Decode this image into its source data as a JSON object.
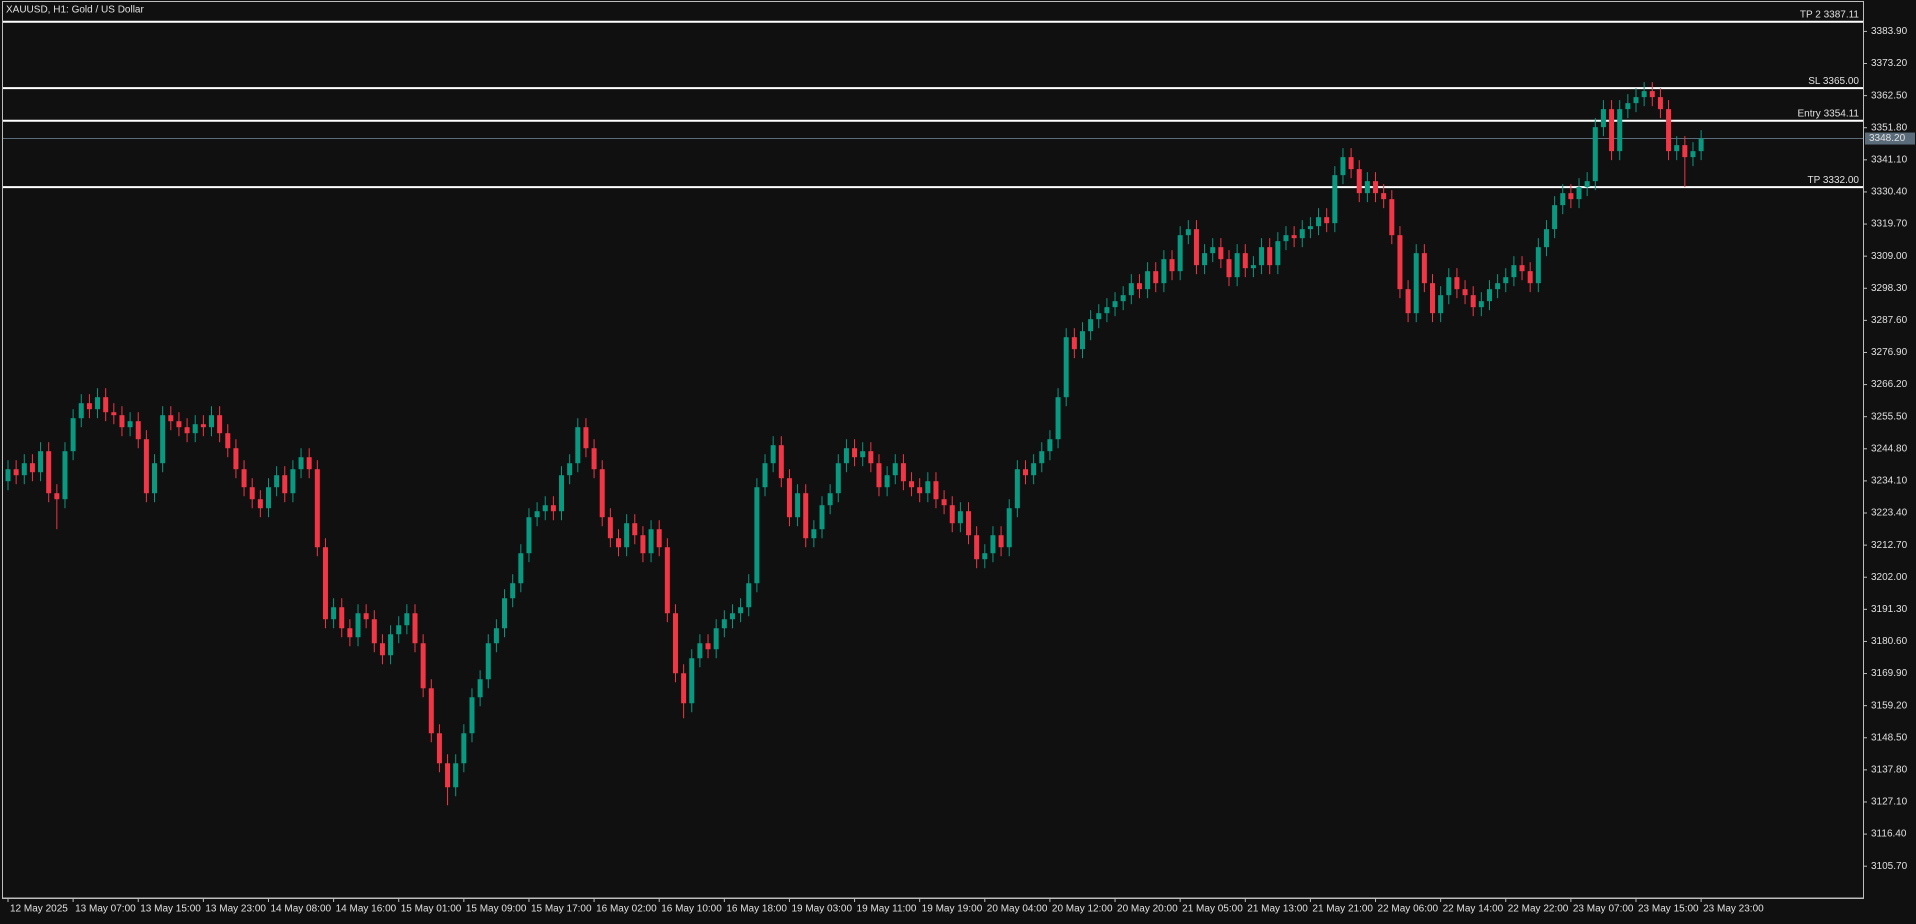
{
  "chart_data": {
    "type": "candlestick",
    "title": "XAUUSD, H1:  Gold / US Dollar",
    "up_color": "#089981",
    "down_color": "#f23645",
    "categories": [
      "12 May 2025",
      null,
      null,
      null,
      null,
      null,
      null,
      null,
      "13 May 07:00",
      null,
      null,
      null,
      null,
      null,
      null,
      null,
      "13 May 15:00",
      null,
      null,
      null,
      null,
      null,
      null,
      null,
      "13 May 23:00",
      null,
      null,
      null,
      null,
      null,
      null,
      null,
      "14 May 08:00",
      null,
      null,
      null,
      null,
      null,
      null,
      null,
      "14 May 16:00",
      null,
      null,
      null,
      null,
      null,
      null,
      null,
      "15 May 01:00",
      null,
      null,
      null,
      null,
      null,
      null,
      null,
      "15 May 09:00",
      null,
      null,
      null,
      null,
      null,
      null,
      null,
      "15 May 17:00",
      null,
      null,
      null,
      null,
      null,
      null,
      null,
      "16 May 02:00",
      null,
      null,
      null,
      null,
      null,
      null,
      null,
      "16 May 10:00",
      null,
      null,
      null,
      null,
      null,
      null,
      null,
      "16 May 18:00",
      null,
      null,
      null,
      null,
      null,
      null,
      null,
      "19 May 03:00",
      null,
      null,
      null,
      null,
      null,
      null,
      null,
      "19 May 11:00",
      null,
      null,
      null,
      null,
      null,
      null,
      null,
      "19 May 19:00",
      null,
      null,
      null,
      null,
      null,
      null,
      null,
      "20 May 04:00",
      null,
      null,
      null,
      null,
      null,
      null,
      null,
      "20 May 12:00",
      null,
      null,
      null,
      null,
      null,
      null,
      null,
      "20 May 20:00",
      null,
      null,
      null,
      null,
      null,
      null,
      null,
      "21 May 05:00",
      null,
      null,
      null,
      null,
      null,
      null,
      null,
      "21 May 13:00",
      null,
      null,
      null,
      null,
      null,
      null,
      null,
      "21 May 21:00",
      null,
      null,
      null,
      null,
      null,
      null,
      null,
      "22 May 06:00",
      null,
      null,
      null,
      null,
      null,
      null,
      null,
      "22 May 14:00",
      null,
      null,
      null,
      null,
      null,
      null,
      null,
      "22 May 22:00",
      null,
      null,
      null,
      null,
      null,
      null,
      null,
      "23 May 07:00",
      null,
      null,
      null,
      null,
      null,
      null,
      null,
      "23 May 15:00",
      null,
      null,
      null,
      null,
      null,
      null,
      null,
      "23 May 23:00"
    ],
    "open": [
      3234,
      3238,
      3236,
      3240,
      3237,
      3244,
      3230,
      3228,
      3244,
      3255,
      3260,
      3258,
      3262,
      3257,
      3256,
      3252,
      3254,
      3248,
      3230,
      3240,
      3256,
      3254,
      3252,
      3250,
      3253,
      3252,
      3256,
      3250,
      3245,
      3238,
      3232,
      3228,
      3225,
      3232,
      3236,
      3230,
      3238,
      3242,
      3238,
      3212,
      3188,
      3192,
      3185,
      3182,
      3190,
      3188,
      3180,
      3176,
      3183,
      3186,
      3190,
      3180,
      3165,
      3150,
      3140,
      3132,
      3140,
      3150,
      3162,
      3168,
      3180,
      3185,
      3195,
      3200,
      3210,
      3222,
      3224,
      3226,
      3224,
      3236,
      3240,
      3252,
      3245,
      3238,
      3222,
      3215,
      3212,
      3220,
      3216,
      3210,
      3218,
      3212,
      3190,
      3170,
      3160,
      3175,
      3180,
      3178,
      3185,
      3188,
      3190,
      3192,
      3200,
      3232,
      3240,
      3246,
      3235,
      3222,
      3230,
      3215,
      3218,
      3226,
      3230,
      3240,
      3245,
      3242,
      3244,
      3240,
      3232,
      3236,
      3240,
      3234,
      3232,
      3230,
      3234,
      3228,
      3226,
      3220,
      3224,
      3216,
      3208,
      3210,
      3216,
      3212,
      3225,
      3238,
      3236,
      3240,
      3244,
      3248,
      3262,
      3282,
      3278,
      3284,
      3288,
      3290,
      3292,
      3294,
      3296,
      3300,
      3298,
      3304,
      3300,
      3308,
      3304,
      3316,
      3318,
      3306,
      3310,
      3312,
      3308,
      3302,
      3310,
      3305,
      3306,
      3312,
      3306,
      3314,
      3316,
      3315,
      3318,
      3319,
      3322,
      3320,
      3336,
      3342,
      3338,
      3330,
      3334,
      3330,
      3328,
      3316,
      3298,
      3290,
      3310,
      3300,
      3290,
      3296,
      3302,
      3298,
      3296,
      3292,
      3294,
      3298,
      3300,
      3302,
      3306,
      3304,
      3300,
      3312,
      3318,
      3326,
      3330,
      3328,
      3332,
      3334,
      3352,
      3358,
      3344,
      3358,
      3360,
      3362,
      3364,
      3362,
      3358,
      3344,
      3346,
      3342,
      3344
    ],
    "high": [
      3241,
      3241,
      3243,
      3243,
      3247,
      3247,
      3233,
      3247,
      3258,
      3263,
      3263,
      3265,
      3265,
      3260,
      3259,
      3257,
      3257,
      3251,
      3243,
      3259,
      3259,
      3257,
      3255,
      3256,
      3256,
      3259,
      3259,
      3253,
      3248,
      3241,
      3235,
      3231,
      3235,
      3239,
      3239,
      3241,
      3245,
      3245,
      3241,
      3215,
      3195,
      3195,
      3188,
      3193,
      3193,
      3191,
      3183,
      3186,
      3189,
      3193,
      3193,
      3183,
      3168,
      3153,
      3143,
      3143,
      3153,
      3165,
      3171,
      3183,
      3188,
      3198,
      3203,
      3213,
      3225,
      3227,
      3229,
      3229,
      3239,
      3243,
      3255,
      3255,
      3248,
      3241,
      3225,
      3218,
      3223,
      3223,
      3219,
      3221,
      3221,
      3215,
      3193,
      3173,
      3178,
      3183,
      3183,
      3188,
      3191,
      3193,
      3195,
      3203,
      3235,
      3243,
      3249,
      3249,
      3238,
      3233,
      3233,
      3221,
      3229,
      3233,
      3243,
      3248,
      3248,
      3247,
      3247,
      3243,
      3239,
      3243,
      3243,
      3237,
      3235,
      3237,
      3237,
      3231,
      3229,
      3227,
      3227,
      3219,
      3213,
      3219,
      3219,
      3228,
      3241,
      3241,
      3243,
      3247,
      3251,
      3265,
      3285,
      3285,
      3287,
      3291,
      3293,
      3295,
      3297,
      3299,
      3303,
      3303,
      3307,
      3307,
      3311,
      3311,
      3319,
      3321,
      3321,
      3313,
      3315,
      3315,
      3311,
      3313,
      3313,
      3309,
      3315,
      3315,
      3317,
      3319,
      3319,
      3321,
      3322,
      3325,
      3325,
      3339,
      3345,
      3345,
      3341,
      3337,
      3337,
      3333,
      3331,
      3319,
      3301,
      3313,
      3313,
      3303,
      3299,
      3305,
      3305,
      3301,
      3299,
      3297,
      3301,
      3303,
      3305,
      3309,
      3309,
      3307,
      3315,
      3321,
      3329,
      3333,
      3333,
      3335,
      3337,
      3355,
      3361,
      3361,
      3361,
      3363,
      3365,
      3367,
      3367,
      3365,
      3361,
      3349,
      3349,
      3347,
      3351
    ],
    "low": [
      3231,
      3233,
      3233,
      3234,
      3234,
      3227,
      3218,
      3225,
      3241,
      3252,
      3255,
      3255,
      3254,
      3253,
      3249,
      3249,
      3245,
      3227,
      3227,
      3237,
      3251,
      3249,
      3247,
      3247,
      3249,
      3249,
      3247,
      3242,
      3235,
      3229,
      3225,
      3222,
      3222,
      3229,
      3227,
      3227,
      3235,
      3235,
      3209,
      3185,
      3185,
      3182,
      3179,
      3179,
      3185,
      3177,
      3173,
      3173,
      3180,
      3183,
      3177,
      3162,
      3147,
      3137,
      3126,
      3129,
      3137,
      3147,
      3159,
      3165,
      3177,
      3182,
      3192,
      3197,
      3207,
      3219,
      3221,
      3221,
      3221,
      3233,
      3237,
      3242,
      3235,
      3219,
      3212,
      3209,
      3209,
      3213,
      3207,
      3207,
      3209,
      3187,
      3167,
      3155,
      3157,
      3172,
      3175,
      3175,
      3182,
      3185,
      3187,
      3189,
      3197,
      3229,
      3237,
      3232,
      3219,
      3219,
      3212,
      3212,
      3215,
      3223,
      3227,
      3237,
      3239,
      3239,
      3237,
      3229,
      3229,
      3233,
      3231,
      3229,
      3227,
      3227,
      3225,
      3223,
      3217,
      3217,
      3213,
      3205,
      3205,
      3207,
      3209,
      3209,
      3222,
      3233,
      3233,
      3237,
      3241,
      3245,
      3259,
      3275,
      3275,
      3281,
      3285,
      3287,
      3289,
      3291,
      3293,
      3295,
      3295,
      3297,
      3297,
      3301,
      3301,
      3313,
      3303,
      3303,
      3307,
      3305,
      3299,
      3299,
      3302,
      3302,
      3303,
      3303,
      3303,
      3311,
      3312,
      3312,
      3315,
      3316,
      3317,
      3317,
      3333,
      3335,
      3327,
      3327,
      3327,
      3325,
      3313,
      3295,
      3287,
      3287,
      3297,
      3287,
      3287,
      3293,
      3295,
      3293,
      3289,
      3289,
      3291,
      3295,
      3297,
      3299,
      3301,
      3297,
      3297,
      3309,
      3315,
      3323,
      3325,
      3325,
      3329,
      3331,
      3349,
      3341,
      3341,
      3355,
      3357,
      3359,
      3359,
      3355,
      3341,
      3341,
      3332,
      3339,
      3341
    ],
    "close": [
      3238,
      3236,
      3240,
      3237,
      3244,
      3230,
      3228,
      3244,
      3255,
      3260,
      3258,
      3262,
      3257,
      3256,
      3252,
      3254,
      3248,
      3230,
      3240,
      3256,
      3254,
      3252,
      3250,
      3253,
      3252,
      3256,
      3250,
      3245,
      3238,
      3232,
      3228,
      3225,
      3232,
      3236,
      3230,
      3238,
      3242,
      3238,
      3212,
      3188,
      3192,
      3185,
      3182,
      3190,
      3188,
      3180,
      3176,
      3183,
      3186,
      3190,
      3180,
      3165,
      3150,
      3140,
      3132,
      3140,
      3150,
      3162,
      3168,
      3180,
      3185,
      3195,
      3200,
      3210,
      3222,
      3224,
      3226,
      3224,
      3236,
      3240,
      3252,
      3245,
      3238,
      3222,
      3215,
      3212,
      3220,
      3216,
      3210,
      3218,
      3212,
      3190,
      3170,
      3160,
      3175,
      3180,
      3178,
      3185,
      3188,
      3190,
      3192,
      3200,
      3232,
      3240,
      3246,
      3235,
      3222,
      3230,
      3215,
      3218,
      3226,
      3230,
      3240,
      3245,
      3242,
      3244,
      3240,
      3232,
      3236,
      3240,
      3234,
      3232,
      3230,
      3234,
      3228,
      3226,
      3220,
      3224,
      3216,
      3208,
      3210,
      3216,
      3212,
      3225,
      3238,
      3236,
      3240,
      3244,
      3248,
      3262,
      3282,
      3278,
      3284,
      3288,
      3290,
      3292,
      3294,
      3296,
      3300,
      3298,
      3304,
      3300,
      3308,
      3304,
      3316,
      3318,
      3306,
      3310,
      3312,
      3308,
      3302,
      3310,
      3305,
      3306,
      3312,
      3306,
      3314,
      3316,
      3315,
      3318,
      3319,
      3322,
      3320,
      3336,
      3342,
      3338,
      3330,
      3334,
      3330,
      3328,
      3316,
      3298,
      3290,
      3310,
      3300,
      3290,
      3296,
      3302,
      3298,
      3296,
      3292,
      3294,
      3298,
      3300,
      3302,
      3306,
      3304,
      3300,
      3312,
      3318,
      3326,
      3330,
      3328,
      3332,
      3334,
      3352,
      3358,
      3344,
      3358,
      3360,
      3362,
      3364,
      3362,
      3358,
      3344,
      3346,
      3342,
      3344,
      3348.2
    ],
    "ylim": [
      3095.1,
      3393.7
    ],
    "yticks": [
      {
        "value": 3383.9,
        "label": "3383.90"
      },
      {
        "value": 3373.2,
        "label": "3373.20"
      },
      {
        "value": 3362.5,
        "label": "3362.50"
      },
      {
        "value": 3351.8,
        "label": "3351.80"
      },
      {
        "value": 3341.1,
        "label": "3341.10"
      },
      {
        "value": 3330.4,
        "label": "3330.40"
      },
      {
        "value": 3319.7,
        "label": "3319.70"
      },
      {
        "value": 3309,
        "label": "3309.00"
      },
      {
        "value": 3298.3,
        "label": "3298.30"
      },
      {
        "value": 3287.6,
        "label": "3287.60"
      },
      {
        "value": 3276.9,
        "label": "3276.90"
      },
      {
        "value": 3266.2,
        "label": "3266.20"
      },
      {
        "value": 3255.5,
        "label": "3255.50"
      },
      {
        "value": 3244.8,
        "label": "3244.80"
      },
      {
        "value": 3234.1,
        "label": "3234.10"
      },
      {
        "value": 3223.4,
        "label": "3223.40"
      },
      {
        "value": 3212.7,
        "label": "3212.70"
      },
      {
        "value": 3202,
        "label": "3202.00"
      },
      {
        "value": 3191.3,
        "label": "3191.30"
      },
      {
        "value": 3180.6,
        "label": "3180.60"
      },
      {
        "value": 3169.9,
        "label": "3169.90"
      },
      {
        "value": 3159.2,
        "label": "3159.20"
      },
      {
        "value": 3148.5,
        "label": "3148.50"
      },
      {
        "value": 3137.8,
        "label": "3137.80"
      },
      {
        "value": 3127.1,
        "label": "3127.10"
      },
      {
        "value": 3116.4,
        "label": "3116.40"
      },
      {
        "value": 3105.7,
        "label": "3105.70"
      }
    ],
    "levels": [
      {
        "label": "TP 2 3387.11",
        "price": 3387.11
      },
      {
        "label": "SL 3365.00",
        "price": 3365
      },
      {
        "label": "Entry 3354.11",
        "price": 3354.11
      },
      {
        "label": "TP 3332.00",
        "price": 3332
      }
    ],
    "current_price": {
      "value": 3348.2,
      "label": "3348.20"
    }
  }
}
